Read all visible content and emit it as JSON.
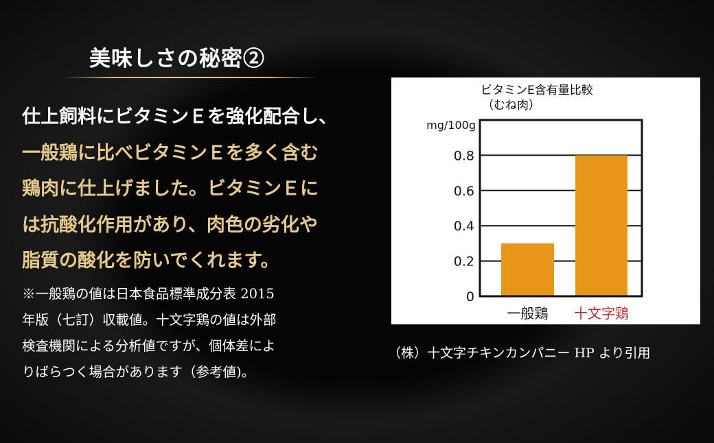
{
  "title": "美味しさの秘密②",
  "body_lines": [
    "仕上飼料にビタミンＥを強化配合し、",
    "一般鶏に比べビタミンＥを多く含む",
    "鶏肉に仕上げました。ビタミンＥに",
    "は抗酸化作用があり、肉色の劣化や",
    "脂質の酸化を防いでくれます。"
  ],
  "note_lines": [
    "※一般鶏の値は日本食品標準成分表 2015",
    "年版（七訂）収載値。十文字鶏の値は外部",
    "検査機関による分析値ですが、個体差によ",
    "りばらつく場合があります（参考値)。"
  ],
  "caption": "（株）十文字チキンカンパニー HP より引用",
  "colors": {
    "accent_gold": "#e6c98d",
    "bar": "#e8961a",
    "highlight_label": "#c0282d"
  },
  "chart_data": {
    "type": "bar",
    "title": "ビタミンE含有量比較",
    "subtitle": "（むね肉）",
    "ylabel": "mg/100g",
    "categories": [
      "一般鶏",
      "十文字鶏"
    ],
    "values": [
      0.3,
      0.8
    ],
    "ylim": [
      0,
      1.0
    ],
    "yticks": [
      "0",
      "0.2",
      "0.4",
      "0.6",
      "0.8"
    ],
    "grid": true,
    "highlighted_category": "十文字鶏"
  }
}
